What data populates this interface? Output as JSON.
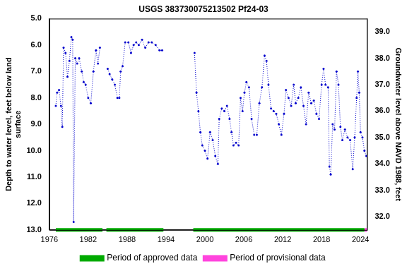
{
  "chart_data": {
    "type": "line",
    "title": "USGS 383730075213502 Pf24-03",
    "y_label": [
      "Depth to water level, feet below land",
      "surface"
    ],
    "y2_label": "Groundwater level above NAVD 1988, feet",
    "xlim": [
      1976,
      2025
    ],
    "xticks": [
      1976,
      1982,
      1988,
      1994,
      2000,
      2006,
      2012,
      2018,
      2024
    ],
    "ylim": [
      5,
      13
    ],
    "yticks": [
      {
        "value": 5,
        "label": "5.0"
      },
      {
        "value": 6,
        "label": "6.0"
      },
      {
        "value": 7,
        "label": "7.0"
      },
      {
        "value": 8,
        "label": "8.0"
      },
      {
        "value": 9,
        "label": "9.0"
      },
      {
        "value": 10,
        "label": "10.0"
      },
      {
        "value": 11,
        "label": "11.0"
      },
      {
        "value": 12,
        "label": "12.0"
      },
      {
        "value": 13,
        "label": "13.0"
      }
    ],
    "y2lim": [
      31.5,
      39.5
    ],
    "y2ticks": [
      {
        "value": 32,
        "label": "32.0"
      },
      {
        "value": 33,
        "label": "33.0"
      },
      {
        "value": 34,
        "label": "34.0"
      },
      {
        "value": 35,
        "label": "35.0"
      },
      {
        "value": 36,
        "label": "36.0"
      },
      {
        "value": 37,
        "label": "37.0"
      },
      {
        "value": 38,
        "label": "38.0"
      },
      {
        "value": 39,
        "label": "39.0"
      }
    ],
    "grid": false,
    "legend": "bottom",
    "series": [
      {
        "color": "#0000cc",
        "marker": "dot",
        "line_style": "dotted",
        "x": [
          1977.0,
          1977.2,
          1977.5,
          1977.8,
          1978.0,
          1978.2,
          1978.5,
          1978.8,
          1979.1,
          1979.4,
          1979.6,
          1979.75,
          1980.0,
          1980.3,
          1980.6,
          1981.0,
          1981.3,
          1981.6,
          1982.0,
          1982.4,
          1982.8,
          1983.2,
          1983.5,
          1983.8,
          1984.5,
          1985.0,
          1985.3,
          1985.7,
          1986.1,
          1986.5,
          1986.8,
          1987.0,
          1987.3,
          1987.7,
          1988.2,
          1988.6,
          1989.0,
          1989.4,
          1989.8,
          1990.3,
          1990.8,
          1991.3,
          1991.8,
          1992.4,
          1993.0,
          1993.4,
          1995.0,
          1998.4,
          1998.7,
          1999.0,
          1999.3,
          1999.6,
          2000.0,
          2000.4,
          2000.8,
          2001.2,
          2001.6,
          2002.0,
          2002.2,
          2002.6,
          2003.0,
          2003.4,
          2003.8,
          2004.1,
          2004.4,
          2004.8,
          2005.2,
          2005.5,
          2005.8,
          2006.1,
          2006.4,
          2006.8,
          2007.2,
          2007.6,
          2008.0,
          2008.4,
          2008.8,
          2009.2,
          2009.5,
          2009.8,
          2010.2,
          2010.6,
          2011.0,
          2011.4,
          2011.8,
          2012.2,
          2012.5,
          2012.9,
          2013.3,
          2013.7,
          2014.0,
          2014.4,
          2014.8,
          2015.2,
          2015.6,
          2016.0,
          2016.4,
          2016.8,
          2017.2,
          2017.6,
          2018.0,
          2018.3,
          2018.6,
          2019.0,
          2019.2,
          2019.4,
          2019.7,
          2020.0,
          2020.3,
          2020.6,
          2020.9,
          2021.2,
          2021.6,
          2022.0,
          2022.4,
          2022.8,
          2023.1,
          2023.4,
          2023.6,
          2023.8,
          2024.0,
          2024.3,
          2024.6,
          2024.9
        ],
        "values": [
          8.3,
          7.8,
          7.7,
          8.3,
          9.1,
          6.1,
          6.3,
          7.2,
          6.6,
          5.7,
          5.8,
          12.7,
          6.5,
          6.7,
          6.5,
          7.0,
          7.4,
          7.5,
          8.0,
          8.2,
          7.0,
          6.2,
          6.7,
          6.1,
          null,
          6.9,
          7.1,
          7.3,
          7.5,
          8.0,
          8.0,
          7.0,
          6.8,
          5.9,
          5.9,
          6.3,
          6.0,
          5.9,
          6.0,
          5.8,
          6.1,
          5.9,
          5.9,
          6.0,
          6.2,
          6.2,
          null,
          6.3,
          7.8,
          8.5,
          9.3,
          9.8,
          10.0,
          10.3,
          9.3,
          9.6,
          10.2,
          10.5,
          8.8,
          8.4,
          8.5,
          8.3,
          8.8,
          9.3,
          9.8,
          9.7,
          9.8,
          8.0,
          8.5,
          7.8,
          7.4,
          7.6,
          8.8,
          9.4,
          9.4,
          8.2,
          7.6,
          6.4,
          6.6,
          7.5,
          8.4,
          8.5,
          8.6,
          9.0,
          9.4,
          8.6,
          7.7,
          8.0,
          8.3,
          7.5,
          8.2,
          8.0,
          7.6,
          8.3,
          9.0,
          7.8,
          8.2,
          8.1,
          8.6,
          8.8,
          7.5,
          6.9,
          7.5,
          7.6,
          10.6,
          10.9,
          9.0,
          9.2,
          7.0,
          7.5,
          9.1,
          9.6,
          9.2,
          9.5,
          9.6,
          10.7,
          9.5,
          8.0,
          7.0,
          7.8,
          9.3,
          9.5,
          10.0,
          10.2
        ]
      }
    ],
    "periods": [
      {
        "name": "Period of approved data",
        "color": "#00aa00",
        "ranges": [
          [
            1977.0,
            1984.2
          ],
          [
            1984.8,
            1993.6
          ],
          [
            1998.2,
            2024.6
          ]
        ]
      },
      {
        "name": "Period of provisional data",
        "color": "#ff44dd",
        "ranges": [
          [
            2024.6,
            2025
          ]
        ]
      }
    ]
  }
}
